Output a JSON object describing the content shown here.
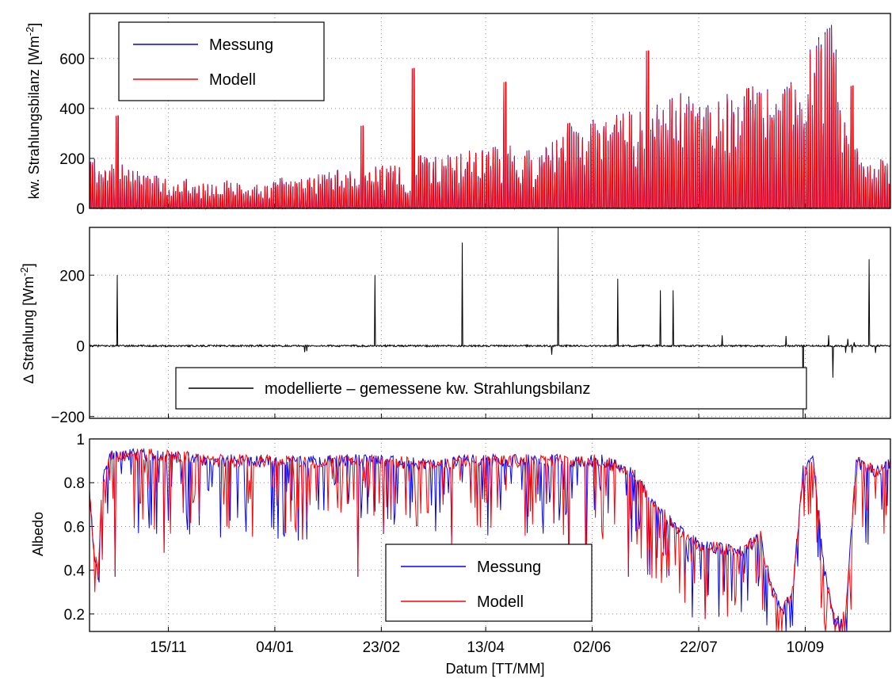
{
  "chart_data": [
    {
      "type": "line",
      "panel": "kw-strahlungsbilanz",
      "ylabel": "kw. Strahlungsbilanz [Wm",
      "ylabel_sup": "-2",
      "ylabel_close": "]",
      "ylim": [
        0,
        780
      ],
      "yticks": [
        0,
        200,
        400,
        600
      ],
      "grid": true,
      "legend_position": "top-left",
      "series": [
        {
          "name": "Messung",
          "color": "#0000ff"
        },
        {
          "name": "Modell",
          "color": "#ff0000"
        }
      ],
      "envelope_x": [
        0,
        5,
        10,
        15,
        20,
        25,
        30,
        35,
        40,
        45,
        50,
        55,
        60,
        65,
        70,
        75,
        80,
        85,
        90,
        95,
        100,
        105,
        110,
        115,
        120,
        125,
        130,
        135,
        140,
        145,
        150,
        155,
        160,
        165,
        170,
        175,
        180,
        185,
        190,
        195,
        200,
        205,
        210,
        215,
        220,
        225,
        230,
        235,
        240,
        245,
        250,
        255,
        260,
        265,
        270,
        275,
        280,
        285,
        290,
        295,
        300,
        305,
        310,
        315,
        320,
        325,
        330,
        335,
        340,
        345,
        350,
        355,
        360,
        365
      ],
      "envelope_y": [
        240,
        175,
        180,
        185,
        160,
        150,
        140,
        130,
        110,
        120,
        105,
        100,
        110,
        115,
        105,
        100,
        110,
        100,
        150,
        135,
        125,
        130,
        145,
        155,
        170,
        160,
        175,
        180,
        175,
        180,
        60,
        200,
        220,
        220,
        215,
        230,
        235,
        240,
        245,
        260,
        250,
        245,
        220,
        250,
        300,
        340,
        350,
        370,
        360,
        380,
        390,
        400,
        410,
        440,
        460,
        480,
        470,
        450,
        430,
        440,
        470,
        490,
        500,
        510,
        480,
        470,
        520,
        560,
        700,
        780,
        760,
        400,
        250,
        200
      ],
      "spikes_x": [
        13,
        128,
        152,
        155,
        195,
        225,
        262,
        309,
        358
      ],
      "spikes_y": [
        370,
        330,
        560,
        210,
        505,
        340,
        630,
        480,
        490
      ]
    },
    {
      "type": "line",
      "panel": "delta-strahlung",
      "ylabel": "∆ Strahlung [Wm",
      "ylabel_sup": "-2",
      "ylabel_close": "]",
      "ylim": [
        -205,
        335
      ],
      "yticks": [
        -200,
        0,
        200
      ],
      "grid": true,
      "legend_position": "bottom-center",
      "series": [
        {
          "name": "modellierte – gemessene kw. Strahlungsbilanz",
          "color": "#000000"
        }
      ],
      "spikes_x": [
        13,
        101,
        102,
        134,
        175,
        217,
        220,
        248,
        268,
        274,
        297,
        327,
        335,
        347,
        349,
        355,
        356,
        358,
        359,
        366,
        369
      ],
      "spikes_y": [
        200,
        -18,
        -15,
        200,
        292,
        -25,
        335,
        190,
        157,
        157,
        30,
        28,
        -230,
        30,
        -90,
        -20,
        20,
        -20,
        10,
        245,
        -20
      ]
    },
    {
      "type": "line",
      "panel": "albedo",
      "ylabel": "Albedo",
      "xlabel": "Datum [TT/MM]",
      "ylim": [
        0.12,
        1.0
      ],
      "yticks": [
        0.2,
        0.4,
        0.6,
        0.8,
        1
      ],
      "ytick_labels": [
        "0.2",
        "0.4",
        "0.6",
        "0.8",
        "1"
      ],
      "xlim": [
        0,
        376
      ],
      "xticks": [
        37,
        87,
        137,
        186,
        236,
        286,
        336
      ],
      "xtick_labels": [
        "15/11",
        "04/01",
        "23/02",
        "13/04",
        "02/06",
        "22/07",
        "10/09"
      ],
      "grid": true,
      "legend_position": "bottom-center",
      "series": [
        {
          "name": "Messung",
          "color": "#0000ff"
        },
        {
          "name": "Modell",
          "color": "#ff0000"
        }
      ],
      "base_x": [
        0,
        2,
        4,
        6,
        10,
        20,
        40,
        60,
        80,
        100,
        120,
        140,
        160,
        180,
        200,
        220,
        240,
        255,
        265,
        275,
        285,
        295,
        305,
        315,
        320,
        325,
        330,
        335,
        340,
        345,
        350,
        355,
        360,
        368,
        376
      ],
      "base_y": [
        0.75,
        0.5,
        0.38,
        0.8,
        0.92,
        0.93,
        0.92,
        0.9,
        0.9,
        0.89,
        0.9,
        0.9,
        0.88,
        0.9,
        0.9,
        0.9,
        0.9,
        0.85,
        0.7,
        0.6,
        0.52,
        0.5,
        0.48,
        0.55,
        0.32,
        0.2,
        0.3,
        0.85,
        0.9,
        0.4,
        0.15,
        0.2,
        0.9,
        0.85,
        0.88
      ],
      "dips_x": [
        12,
        35,
        100,
        126,
        170,
        225,
        233,
        253,
        262,
        352
      ],
      "dips_y": [
        0.37,
        0.48,
        0.54,
        0.37,
        0.52,
        0.37,
        0.37,
        0.37,
        0.38,
        0.12
      ]
    }
  ]
}
